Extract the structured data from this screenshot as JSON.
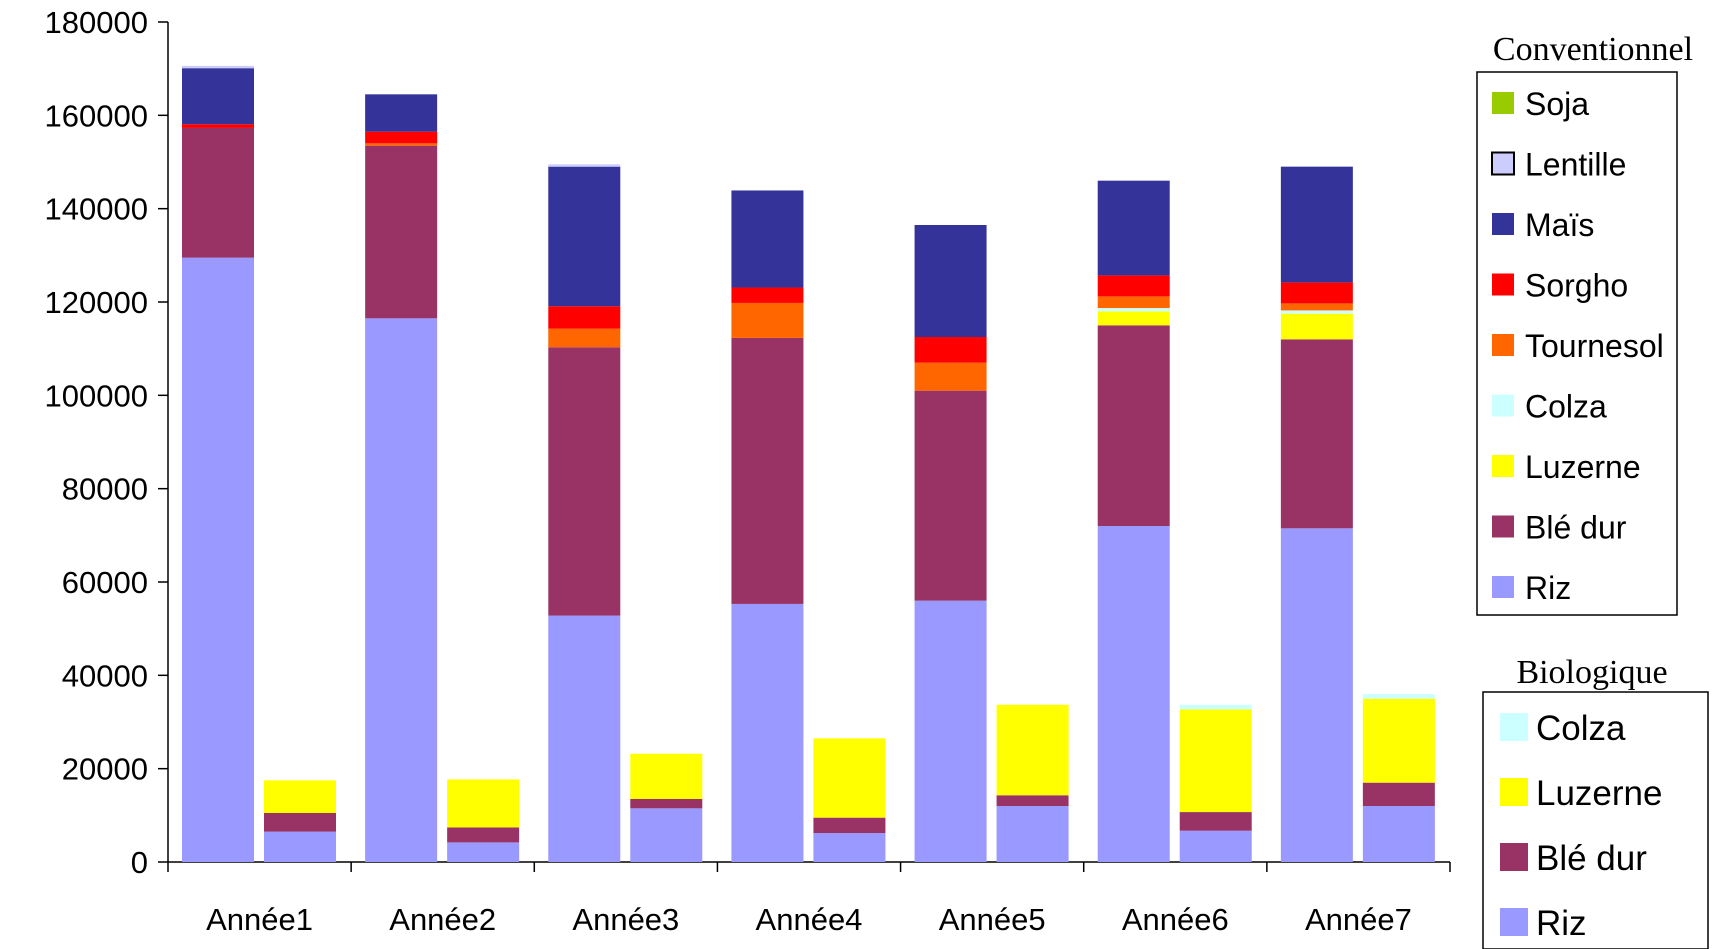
{
  "chart_data": {
    "type": "bar",
    "stacked": true,
    "grid": false,
    "ylim": [
      0,
      180000
    ],
    "yticks": [
      0,
      20000,
      40000,
      60000,
      80000,
      100000,
      120000,
      140000,
      160000,
      180000
    ],
    "categories": [
      "Année1",
      "Année2",
      "Année3",
      "Année4",
      "Année5",
      "Année6",
      "Année7"
    ],
    "legend_placement": "right",
    "groups": [
      {
        "name": "Conventionnel",
        "series": [
          {
            "name": "Riz",
            "color": "#9999ff",
            "values": [
              129500,
              116500,
              52800,
              55300,
              56000,
              72000,
              71500
            ]
          },
          {
            "name": "Blé dur",
            "color": "#993366",
            "values": [
              27800,
              37000,
              57500,
              57000,
              45000,
              43000,
              40500
            ]
          },
          {
            "name": "Luzerne",
            "color": "#ffff00",
            "values": [
              0,
              0,
              0,
              0,
              0,
              3000,
              5500
            ]
          },
          {
            "name": "Colza",
            "color": "#ccffff",
            "values": [
              0,
              0,
              0,
              0,
              0,
              700,
              700
            ]
          },
          {
            "name": "Tournesol",
            "color": "#ff6600",
            "values": [
              0,
              500,
              4000,
              7500,
              6000,
              2500,
              1500
            ]
          },
          {
            "name": "Sorgho",
            "color": "#ff0000",
            "values": [
              800,
              2500,
              4800,
              3300,
              5500,
              4500,
              4500
            ]
          },
          {
            "name": "Maïs",
            "color": "#333399",
            "values": [
              12000,
              8000,
              29900,
              20800,
              24000,
              20300,
              24800
            ]
          },
          {
            "name": "Lentille",
            "color": "#ccccff",
            "values": [
              500,
              0,
              500,
              0,
              0,
              0,
              0
            ]
          },
          {
            "name": "Soja",
            "color": "#99cc00",
            "values": [
              0,
              0,
              0,
              0,
              0,
              0,
              0
            ]
          }
        ]
      },
      {
        "name": "Biologique",
        "series": [
          {
            "name": "Riz",
            "color": "#9999ff",
            "values": [
              6500,
              4200,
              11500,
              6200,
              12000,
              6700,
              12000
            ]
          },
          {
            "name": "Blé dur",
            "color": "#993366",
            "values": [
              4000,
              3200,
              2000,
              3300,
              2300,
              4000,
              5000
            ]
          },
          {
            "name": "Luzerne",
            "color": "#ffff00",
            "values": [
              7000,
              10300,
              9700,
              17000,
              19400,
              22000,
              18000
            ]
          },
          {
            "name": "Colza",
            "color": "#ccffff",
            "values": [
              0,
              0,
              0,
              0,
              0,
              1000,
              1000
            ]
          }
        ]
      }
    ]
  }
}
